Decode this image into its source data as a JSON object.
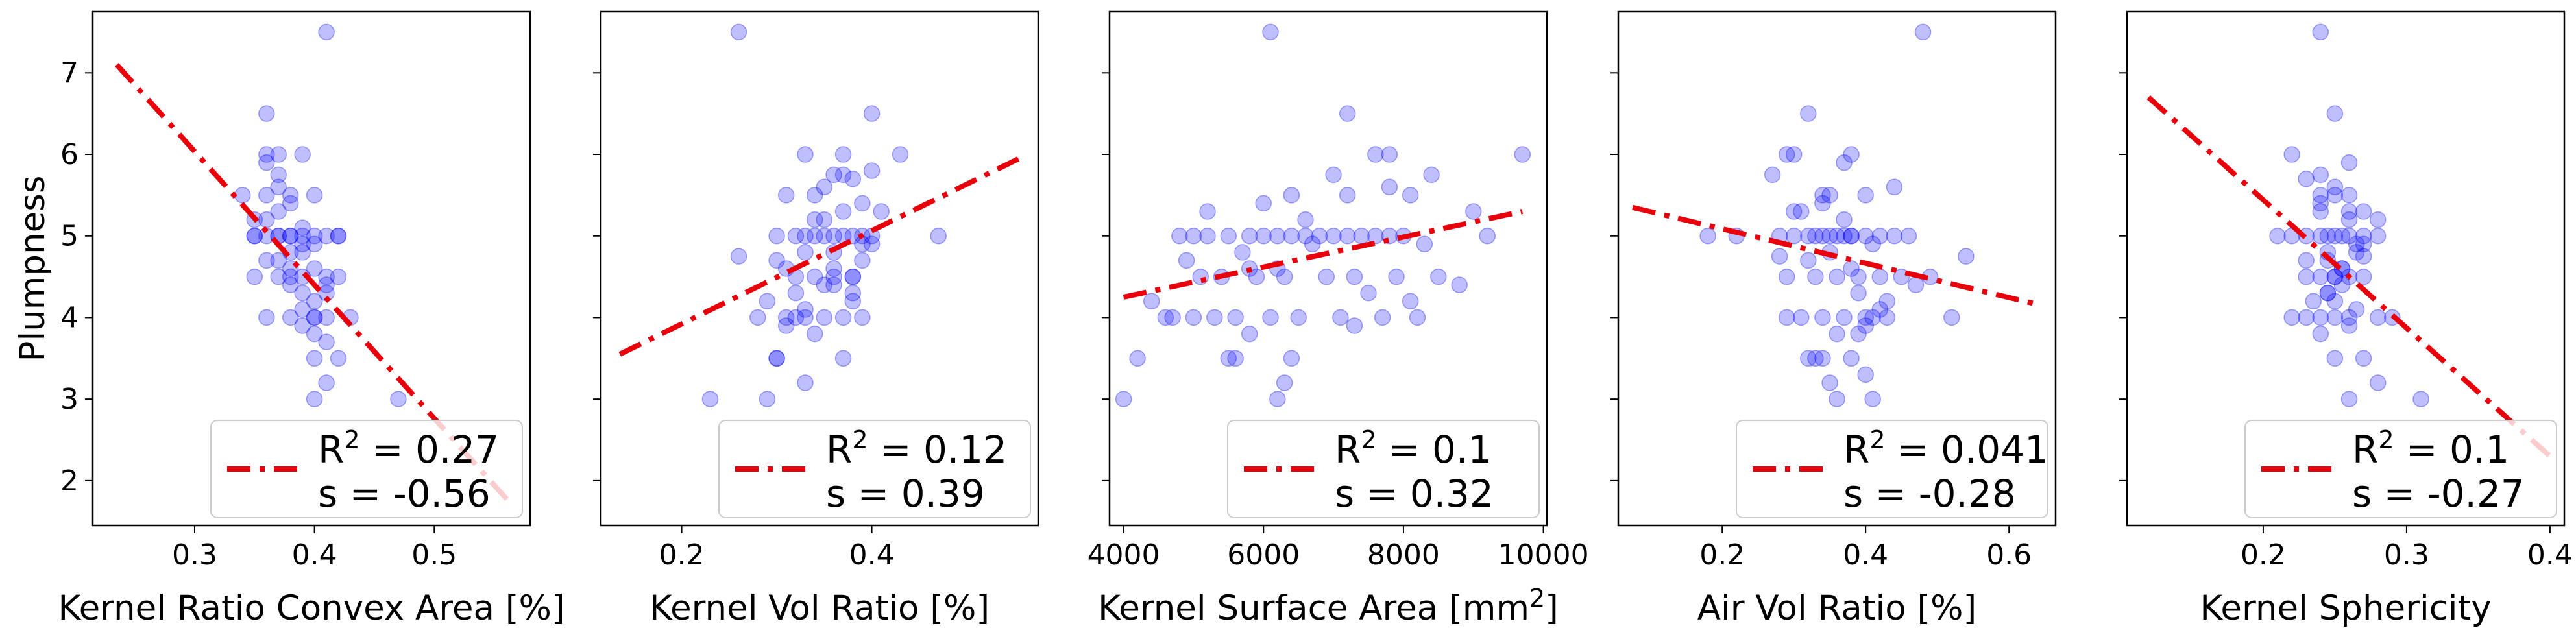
{
  "chart_data": [
    {
      "type": "scatter",
      "xlabel": "Kernel Ratio Convex Area [%]",
      "ylabel": "Plumpness",
      "xlim": [
        0.215,
        0.58
      ],
      "ylim": [
        1.45,
        7.75
      ],
      "xticks": [
        "0.3",
        "0.4",
        "0.5"
      ],
      "xtick_values": [
        0.3,
        0.4,
        0.5
      ],
      "yticks": [
        "2",
        "3",
        "4",
        "5",
        "6",
        "7"
      ],
      "yticks_shown": true,
      "fit_line": {
        "x": [
          0.235,
          0.565
        ],
        "y": [
          7.1,
          1.7
        ]
      },
      "legend": {
        "r2": "0.27",
        "s": "-0.56",
        "loc": "lower right"
      },
      "points": {
        "x": [
          0.35,
          0.36,
          0.37,
          0.38,
          0.39,
          0.4,
          0.41,
          0.42,
          0.35,
          0.37,
          0.39,
          0.41,
          0.36,
          0.38,
          0.4,
          0.34,
          0.36,
          0.38,
          0.4,
          0.42,
          0.37,
          0.39,
          0.41,
          0.36,
          0.38,
          0.4,
          0.35,
          0.37,
          0.39,
          0.41,
          0.38,
          0.4,
          0.42,
          0.37,
          0.39,
          0.36,
          0.38,
          0.4,
          0.35,
          0.37,
          0.39,
          0.41,
          0.36,
          0.38,
          0.4,
          0.39,
          0.41,
          0.37,
          0.39,
          0.4,
          0.38,
          0.4,
          0.42,
          0.36,
          0.41,
          0.39,
          0.43,
          0.4,
          0.47,
          0.36,
          0.41,
          0.37,
          0.38
        ],
        "y": [
          5.0,
          5.0,
          5.0,
          5.0,
          5.0,
          5.0,
          5.0,
          5.0,
          4.5,
          4.5,
          4.5,
          4.5,
          4.0,
          4.0,
          4.0,
          5.5,
          5.5,
          5.5,
          5.5,
          5.0,
          6.0,
          6.0,
          4.0,
          4.7,
          4.8,
          4.6,
          5.2,
          5.3,
          4.9,
          4.3,
          4.4,
          4.2,
          4.5,
          5.75,
          5.1,
          6.5,
          4.6,
          3.8,
          5.0,
          4.7,
          4.8,
          4.4,
          5.2,
          5.0,
          4.9,
          3.9,
          3.7,
          5.6,
          4.1,
          3.5,
          5.4,
          4.0,
          3.5,
          6.0,
          3.2,
          4.3,
          4.0,
          3.0,
          3.0,
          5.9,
          7.5,
          5.0,
          4.5
        ]
      }
    },
    {
      "type": "scatter",
      "xlabel": "Kernel Vol Ratio [%]",
      "ylabel": "",
      "xlim": [
        0.115,
        0.575
      ],
      "ylim": [
        1.45,
        7.75
      ],
      "xticks": [
        "0.2",
        "0.4"
      ],
      "xtick_values": [
        0.2,
        0.4
      ],
      "yticks": [
        "2",
        "3",
        "4",
        "5",
        "6",
        "7"
      ],
      "yticks_shown": false,
      "fit_line": {
        "x": [
          0.135,
          0.555
        ],
        "y": [
          3.55,
          5.95
        ]
      },
      "legend": {
        "r2": "0.12",
        "s": "0.39",
        "loc": "lower right"
      },
      "points": {
        "x": [
          0.3,
          0.32,
          0.33,
          0.34,
          0.35,
          0.36,
          0.37,
          0.38,
          0.39,
          0.4,
          0.31,
          0.33,
          0.35,
          0.37,
          0.39,
          0.32,
          0.34,
          0.36,
          0.38,
          0.3,
          0.33,
          0.36,
          0.39,
          0.34,
          0.37,
          0.31,
          0.35,
          0.38,
          0.4,
          0.33,
          0.36,
          0.29,
          0.32,
          0.35,
          0.38,
          0.34,
          0.37,
          0.3,
          0.33,
          0.36,
          0.39,
          0.41,
          0.28,
          0.31,
          0.35,
          0.38,
          0.4,
          0.34,
          0.37,
          0.32,
          0.36,
          0.43,
          0.47,
          0.26,
          0.23,
          0.29,
          0.3,
          0.31,
          0.33,
          0.37,
          0.39,
          0.38,
          0.26,
          0.4
        ],
        "y": [
          5.0,
          5.0,
          5.0,
          5.0,
          5.0,
          5.0,
          5.0,
          5.0,
          5.0,
          5.0,
          4.0,
          4.0,
          4.0,
          4.0,
          4.0,
          4.5,
          4.5,
          4.5,
          4.5,
          4.7,
          4.8,
          4.6,
          4.9,
          5.2,
          5.3,
          5.5,
          5.6,
          5.7,
          5.8,
          6.0,
          5.75,
          4.2,
          4.3,
          4.4,
          4.2,
          3.8,
          3.5,
          3.5,
          3.2,
          4.8,
          5.4,
          5.3,
          4.0,
          4.6,
          5.2,
          4.3,
          4.9,
          5.5,
          6.0,
          4.0,
          4.4,
          6.0,
          5.0,
          7.5,
          3.0,
          3.0,
          3.5,
          3.9,
          4.1,
          5.75,
          4.7,
          4.5,
          4.75,
          6.5
        ]
      }
    },
    {
      "type": "scatter",
      "xlabel": "Kernel Surface Area [mm²]",
      "ylabel": "",
      "xlim": [
        3800,
        10050
      ],
      "ylim": [
        1.45,
        7.75
      ],
      "xticks": [
        "4000",
        "6000",
        "8000",
        "10000"
      ],
      "xtick_values": [
        4000,
        6000,
        8000,
        10000
      ],
      "yticks": [
        "2",
        "3",
        "4",
        "5",
        "6",
        "7"
      ],
      "yticks_shown": false,
      "fit_line": {
        "x": [
          4000,
          9700
        ],
        "y": [
          4.25,
          5.3
        ]
      },
      "legend": {
        "r2": "0.1",
        "s": "0.32",
        "loc": "lower right"
      },
      "points": {
        "x": [
          4800,
          5000,
          5200,
          5500,
          5800,
          6000,
          6200,
          6400,
          6600,
          6800,
          7000,
          7200,
          7400,
          7600,
          7800,
          8000,
          4700,
          5300,
          5600,
          6100,
          6500,
          7100,
          7700,
          8200,
          5100,
          5400,
          5900,
          6300,
          6900,
          7300,
          7900,
          8500,
          4900,
          5700,
          6200,
          6700,
          7500,
          8100,
          8800,
          5200,
          6000,
          6600,
          7200,
          7800,
          8400,
          9000,
          4400,
          5000,
          5800,
          6400,
          7000,
          7600,
          8300,
          9200,
          5500,
          6300,
          7300,
          4000,
          4200,
          5600,
          6200,
          6400,
          7200,
          7800,
          8100,
          9700,
          6100,
          4600,
          5800
        ],
        "y": [
          5.0,
          5.0,
          5.0,
          5.0,
          5.0,
          5.0,
          5.0,
          5.0,
          5.0,
          5.0,
          5.0,
          5.0,
          5.0,
          5.0,
          5.0,
          5.0,
          4.0,
          4.0,
          4.0,
          4.0,
          4.0,
          4.0,
          4.0,
          4.0,
          4.5,
          4.5,
          4.5,
          4.5,
          4.5,
          4.5,
          4.5,
          4.5,
          4.7,
          4.8,
          4.6,
          4.9,
          4.3,
          4.2,
          4.4,
          5.3,
          5.4,
          5.2,
          5.5,
          5.6,
          5.75,
          5.3,
          4.2,
          4.0,
          4.6,
          5.5,
          5.75,
          6.0,
          4.9,
          5.0,
          3.5,
          3.2,
          3.9,
          3.0,
          3.5,
          3.5,
          3.0,
          3.5,
          6.5,
          6.0,
          5.5,
          6.0,
          7.5,
          4.0,
          3.8
        ]
      }
    },
    {
      "type": "scatter",
      "xlabel": "Air Vol Ratio [%]",
      "ylabel": "",
      "xlim": [
        0.055,
        0.665
      ],
      "ylim": [
        1.45,
        7.75
      ],
      "xticks": [
        "0.2",
        "0.4",
        "0.6"
      ],
      "xtick_values": [
        0.2,
        0.4,
        0.6
      ],
      "yticks": [
        "2",
        "3",
        "4",
        "5",
        "6",
        "7"
      ],
      "yticks_shown": false,
      "fit_line": {
        "x": [
          0.075,
          0.645
        ],
        "y": [
          5.35,
          4.15
        ]
      },
      "legend": {
        "r2": "0.041",
        "s": "-0.28",
        "loc": "lower right"
      },
      "points": {
        "x": [
          0.28,
          0.3,
          0.32,
          0.33,
          0.34,
          0.35,
          0.36,
          0.37,
          0.38,
          0.4,
          0.42,
          0.44,
          0.46,
          0.31,
          0.34,
          0.37,
          0.4,
          0.43,
          0.29,
          0.33,
          0.36,
          0.39,
          0.42,
          0.45,
          0.32,
          0.35,
          0.38,
          0.41,
          0.3,
          0.34,
          0.37,
          0.4,
          0.44,
          0.27,
          0.31,
          0.35,
          0.39,
          0.43,
          0.47,
          0.33,
          0.36,
          0.4,
          0.29,
          0.34,
          0.38,
          0.42,
          0.32,
          0.36,
          0.41,
          0.34,
          0.35,
          0.38,
          0.39,
          0.22,
          0.18,
          0.48,
          0.32,
          0.41,
          0.3,
          0.28,
          0.29,
          0.54,
          0.52,
          0.49,
          0.37,
          0.38,
          0.4
        ],
        "y": [
          5.0,
          5.0,
          5.0,
          5.0,
          5.0,
          5.0,
          5.0,
          5.0,
          5.0,
          5.0,
          5.0,
          5.0,
          5.0,
          4.0,
          4.0,
          4.0,
          4.0,
          4.0,
          4.5,
          4.5,
          4.5,
          4.5,
          4.5,
          4.5,
          4.7,
          4.8,
          4.6,
          4.9,
          5.3,
          5.4,
          5.2,
          5.5,
          5.6,
          5.75,
          5.3,
          5.5,
          4.3,
          4.2,
          4.4,
          3.5,
          3.8,
          3.9,
          4.0,
          5.5,
          6.0,
          4.1,
          6.5,
          3.0,
          3.0,
          3.5,
          3.2,
          3.5,
          3.8,
          5.0,
          5.0,
          7.5,
          3.5,
          4.0,
          6.0,
          4.75,
          6.0,
          4.75,
          4.0,
          4.5,
          5.9,
          5.0,
          3.3
        ]
      }
    },
    {
      "type": "scatter",
      "xlabel": "Kernel Sphericity",
      "ylabel": "",
      "xlim": [
        0.105,
        0.41
      ],
      "ylim": [
        1.45,
        7.75
      ],
      "xticks": [
        "0.2",
        "0.3",
        "0.4"
      ],
      "xtick_values": [
        0.2,
        0.3,
        0.4
      ],
      "yticks": [
        "2",
        "3",
        "4",
        "5",
        "6",
        "7"
      ],
      "yticks_shown": false,
      "fit_line": {
        "x": [
          0.12,
          0.4
        ],
        "y": [
          6.7,
          2.3
        ]
      },
      "legend": {
        "r2": "0.1",
        "s": "-0.27",
        "loc": "lower right"
      },
      "points": {
        "x": [
          0.22,
          0.23,
          0.24,
          0.245,
          0.25,
          0.255,
          0.26,
          0.27,
          0.28,
          0.23,
          0.24,
          0.25,
          0.26,
          0.27,
          0.22,
          0.24,
          0.25,
          0.26,
          0.28,
          0.23,
          0.245,
          0.255,
          0.265,
          0.24,
          0.25,
          0.26,
          0.22,
          0.23,
          0.24,
          0.25,
          0.26,
          0.27,
          0.235,
          0.245,
          0.255,
          0.265,
          0.24,
          0.25,
          0.26,
          0.23,
          0.25,
          0.27,
          0.24,
          0.26,
          0.245,
          0.255,
          0.25,
          0.27,
          0.28,
          0.26,
          0.24,
          0.21,
          0.29,
          0.31,
          0.25,
          0.245,
          0.24,
          0.26,
          0.265,
          0.27,
          0.28
        ],
        "y": [
          5.0,
          5.0,
          5.0,
          5.0,
          5.0,
          5.0,
          5.0,
          5.0,
          5.0,
          4.5,
          4.5,
          4.5,
          4.5,
          4.5,
          4.0,
          4.0,
          4.0,
          4.0,
          4.0,
          4.7,
          4.8,
          4.6,
          4.9,
          5.5,
          5.5,
          5.3,
          6.0,
          5.7,
          5.75,
          5.6,
          5.2,
          5.3,
          4.2,
          4.3,
          4.4,
          4.1,
          3.8,
          3.5,
          3.9,
          4.0,
          4.5,
          4.75,
          5.4,
          5.9,
          4.7,
          4.6,
          6.5,
          3.5,
          3.2,
          3.0,
          7.5,
          5.0,
          4.0,
          3.0,
          4.2,
          4.3,
          5.3,
          5.5,
          4.8,
          4.9,
          5.2
        ]
      }
    }
  ]
}
